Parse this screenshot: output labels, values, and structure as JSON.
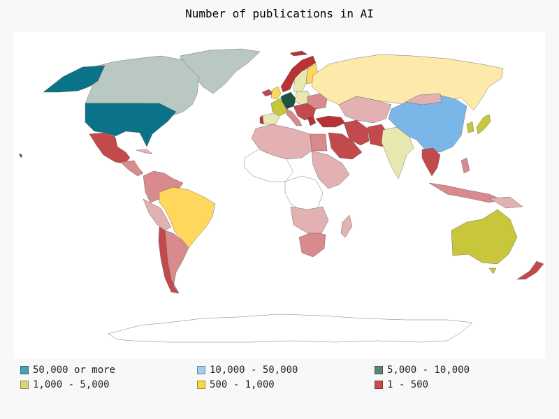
{
  "title": "Number of publications in AI",
  "colors": {
    "cat_50000_plus": "#0b7388",
    "cat_10000_50000": "#7ab7e8",
    "cat_5000_10000": "#1e5243",
    "cat_1000_5000": "#c8c63a",
    "cat_500_1000": "#ffd75c",
    "cat_1_500": "#b83234",
    "mid_dark": "#c24a4c",
    "mid": "#d88a8c",
    "light": "#e3b1b2",
    "russia": "#fde9a9",
    "canada": "#b9c8c2",
    "greenland": "#b9c8c2",
    "pale_yellow": "#e9e8b1",
    "no_data": "#ffffff"
  },
  "legend": [
    {
      "label": "50,000 or more",
      "color": "#4b9fb2"
    },
    {
      "label": "10,000 - 50,000",
      "color": "#a3cdef"
    },
    {
      "label": "5,000 - 10,000",
      "color": "#5d8277"
    },
    {
      "label": "1,000 - 5,000",
      "color": "#d6d676"
    },
    {
      "label": "500 - 1,000",
      "color": "#fcd443"
    },
    {
      "label": "1 - 500",
      "color": "#c94d4e"
    }
  ]
}
